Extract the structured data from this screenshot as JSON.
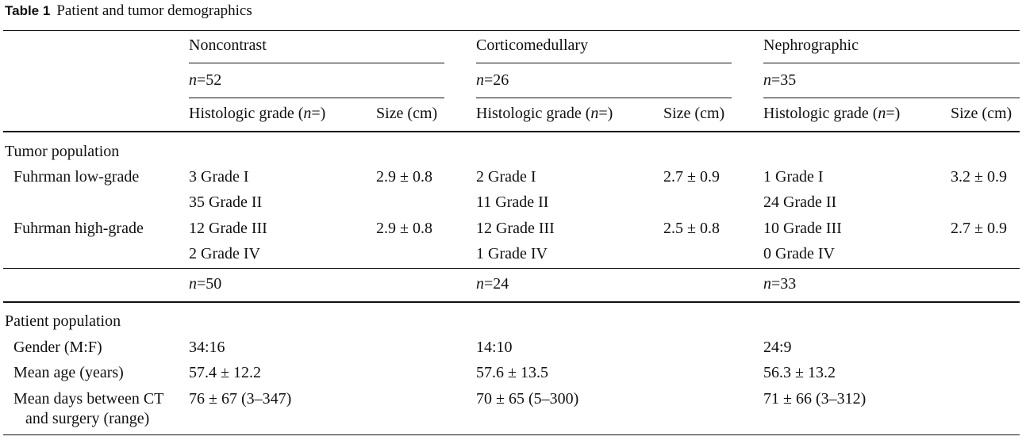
{
  "caption": {
    "label": "Table 1",
    "title": "Patient and tumor demographics"
  },
  "header": {
    "phases": [
      "Noncontrast",
      "Corticomedullary",
      "Nephrographic"
    ],
    "n_values": [
      "52",
      "26",
      "35"
    ],
    "n_var": "n",
    "eq": "=",
    "grade_col": {
      "prefix": "Histologic grade (",
      "var": "n",
      "suffix": "=)"
    },
    "size_col": "Size (cm)"
  },
  "tumor": {
    "section": "Tumor population",
    "rows": [
      {
        "label": "Fuhrman low-grade",
        "grades": [
          [
            "3 Grade I",
            "35 Grade II"
          ],
          [
            "2 Grade I",
            "11 Grade II"
          ],
          [
            "1 Grade I",
            "24 Grade II"
          ]
        ],
        "sizes": [
          "2.9 ± 0.8",
          "2.7 ± 0.9",
          "3.2 ± 0.9"
        ]
      },
      {
        "label": "Fuhrman high-grade",
        "grades": [
          [
            "12 Grade III",
            "2 Grade IV"
          ],
          [
            "12 Grade III",
            "1 Grade IV"
          ],
          [
            "10 Grade III",
            "0 Grade IV"
          ]
        ],
        "sizes": [
          "2.9 ± 0.8",
          "2.5 ± 0.8",
          "2.7 ± 0.9"
        ]
      }
    ]
  },
  "patient_n": [
    "50",
    "24",
    "33"
  ],
  "patient": {
    "section": "Patient population",
    "rows": [
      {
        "label": [
          "Gender (M:F)"
        ],
        "values": [
          "34:16",
          "14:10",
          "24:9"
        ]
      },
      {
        "label": [
          "Mean age (years)"
        ],
        "values": [
          "57.4 ± 12.2",
          "57.6 ± 13.5",
          "56.3 ± 13.2"
        ]
      },
      {
        "label": [
          "Mean days between CT",
          "and surgery (range)"
        ],
        "values": [
          "76 ± 67 (3–347)",
          "70 ± 65 (5–300)",
          "71 ± 66 (3–312)"
        ]
      }
    ]
  }
}
